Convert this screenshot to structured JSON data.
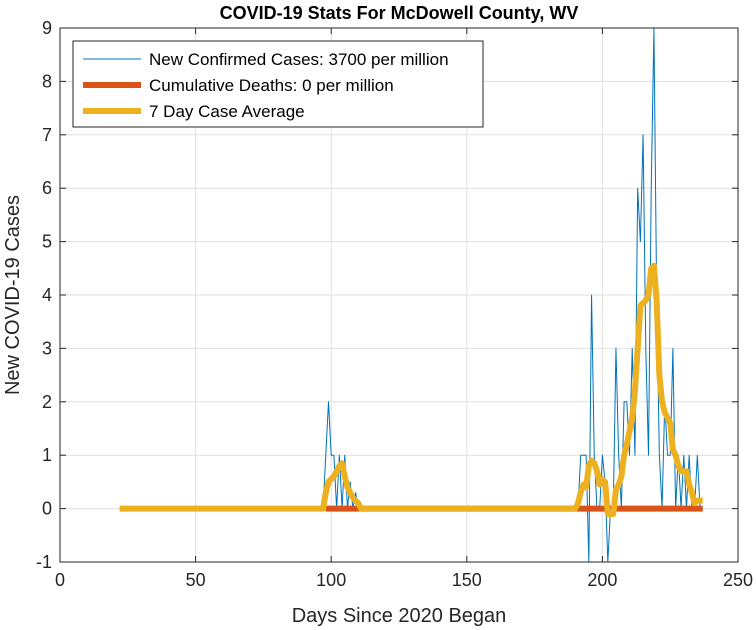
{
  "chart_data": {
    "type": "line",
    "title": "COVID-19 Stats For McDowell County, WV",
    "xlabel": "Days Since 2020 Began",
    "ylabel": "New COVID-19 Cases",
    "xlim": [
      0,
      250
    ],
    "ylim": [
      -1,
      9
    ],
    "xticks": [
      0,
      50,
      100,
      150,
      200,
      250
    ],
    "yticks": [
      -1,
      0,
      1,
      2,
      3,
      4,
      5,
      6,
      7,
      8,
      9
    ],
    "grid": true,
    "legend_position": "top-left",
    "series": [
      {
        "name": "New Confirmed Cases: 3700 per million",
        "color": "#0072BD",
        "line_style": "thin",
        "points": [
          [
            22,
            0
          ],
          [
            97,
            0
          ],
          [
            98,
            1
          ],
          [
            99,
            2
          ],
          [
            100,
            1
          ],
          [
            101,
            1
          ],
          [
            102,
            0
          ],
          [
            103,
            1
          ],
          [
            104,
            0
          ],
          [
            105,
            1
          ],
          [
            106,
            0
          ],
          [
            107,
            0.5
          ],
          [
            108,
            0
          ],
          [
            109,
            0.3
          ],
          [
            110,
            0
          ],
          [
            111,
            0
          ],
          [
            190,
            0
          ],
          [
            191,
            0
          ],
          [
            192,
            1
          ],
          [
            193,
            1
          ],
          [
            194,
            1
          ],
          [
            195,
            -1
          ],
          [
            196,
            4
          ],
          [
            197,
            1
          ],
          [
            198,
            0
          ],
          [
            199,
            0
          ],
          [
            200,
            1
          ],
          [
            201,
            0.5
          ],
          [
            202,
            -1
          ],
          [
            203,
            0
          ],
          [
            204,
            0
          ],
          [
            205,
            3
          ],
          [
            206,
            1
          ],
          [
            207,
            0
          ],
          [
            208,
            2
          ],
          [
            209,
            2
          ],
          [
            210,
            1
          ],
          [
            211,
            3
          ],
          [
            212,
            1
          ],
          [
            213,
            6
          ],
          [
            214,
            5
          ],
          [
            215,
            7
          ],
          [
            216,
            3
          ],
          [
            217,
            1
          ],
          [
            218,
            6
          ],
          [
            219,
            9
          ],
          [
            220,
            4
          ],
          [
            221,
            1
          ],
          [
            222,
            0
          ],
          [
            223,
            2
          ],
          [
            224,
            1
          ],
          [
            225,
            1
          ],
          [
            226,
            3
          ],
          [
            227,
            0
          ],
          [
            228,
            1
          ],
          [
            229,
            0
          ],
          [
            230,
            1
          ],
          [
            231,
            0
          ],
          [
            232,
            1
          ],
          [
            233,
            0
          ],
          [
            234,
            0
          ],
          [
            235,
            1
          ],
          [
            236,
            0
          ],
          [
            237,
            0
          ]
        ]
      },
      {
        "name": "Cumulative Deaths: 0 per million",
        "color": "#D95319",
        "line_style": "thick",
        "points": [
          [
            98,
            0
          ],
          [
            111,
            0
          ],
          [
            191,
            0
          ],
          [
            237,
            0
          ]
        ]
      },
      {
        "name": "7 Day Case Average",
        "color": "#EDB120",
        "line_style": "thick",
        "points": [
          [
            22,
            0
          ],
          [
            97,
            0
          ],
          [
            98,
            0.3
          ],
          [
            99,
            0.5
          ],
          [
            101,
            0.6
          ],
          [
            103,
            0.8
          ],
          [
            104,
            0.85
          ],
          [
            105,
            0.6
          ],
          [
            106,
            0.4
          ],
          [
            107,
            0.3
          ],
          [
            108,
            0.2
          ],
          [
            110,
            0.1
          ],
          [
            111,
            0
          ],
          [
            190,
            0
          ],
          [
            191,
            0.1
          ],
          [
            192,
            0.3
          ],
          [
            193,
            0.45
          ],
          [
            194,
            0.4
          ],
          [
            195,
            0.8
          ],
          [
            196,
            0.9
          ],
          [
            197,
            0.85
          ],
          [
            198,
            0.7
          ],
          [
            199,
            0.45
          ],
          [
            200,
            0.55
          ],
          [
            201,
            0.5
          ],
          [
            202,
            -0.1
          ],
          [
            203,
            -0.1
          ],
          [
            204,
            -0.1
          ],
          [
            205,
            0.35
          ],
          [
            206,
            0.45
          ],
          [
            207,
            0.6
          ],
          [
            208,
            1.0
          ],
          [
            209,
            1.2
          ],
          [
            210,
            1.45
          ],
          [
            211,
            1.7
          ],
          [
            212,
            2.2
          ],
          [
            213,
            3.0
          ],
          [
            214,
            3.8
          ],
          [
            215,
            3.85
          ],
          [
            216,
            3.9
          ],
          [
            217,
            4.0
          ],
          [
            218,
            4.5
          ],
          [
            219,
            4.55
          ],
          [
            220,
            3.9
          ],
          [
            221,
            2.5
          ],
          [
            222,
            2.0
          ],
          [
            223,
            1.8
          ],
          [
            224,
            1.7
          ],
          [
            225,
            1.6
          ],
          [
            226,
            1.1
          ],
          [
            227,
            1.0
          ],
          [
            228,
            0.8
          ],
          [
            229,
            0.7
          ],
          [
            230,
            0.7
          ],
          [
            231,
            0.7
          ],
          [
            232,
            0.45
          ],
          [
            233,
            0.3
          ],
          [
            234,
            0.1
          ],
          [
            235,
            0.15
          ],
          [
            236,
            0.15
          ],
          [
            237,
            0.15
          ]
        ]
      }
    ]
  }
}
